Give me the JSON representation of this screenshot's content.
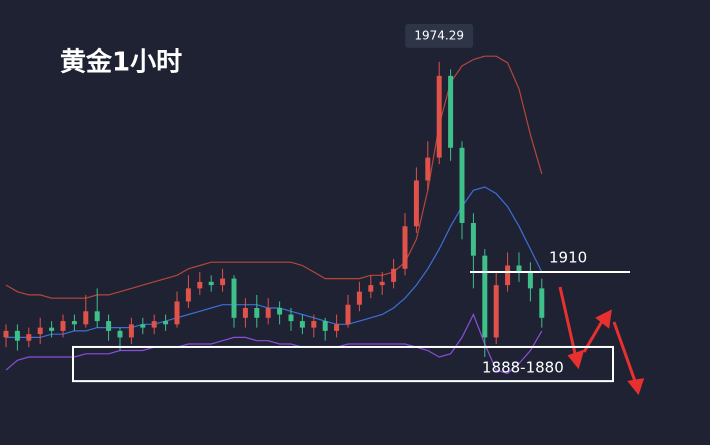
{
  "chart_data": {
    "type": "candlestick",
    "title": "黄金1小时",
    "up_color": "#e0524a",
    "down_color": "#3fbf8a",
    "ylim": [
      1857.1,
      1993.2
    ],
    "open": [
      1890,
      1892,
      1889,
      1891,
      1893,
      1892,
      1895,
      1894,
      1898,
      1895,
      1892,
      1890,
      1894,
      1893,
      1895,
      1894,
      1901,
      1905,
      1907,
      1906,
      1908,
      1896,
      1899,
      1896,
      1899,
      1897,
      1895,
      1893,
      1895,
      1892,
      1894,
      1900,
      1904,
      1906,
      1907,
      1911,
      1924,
      1938,
      1945,
      1970,
      1948,
      1925,
      1915,
      1890,
      1906,
      1912,
      1910,
      1905
    ],
    "high": [
      1894,
      1894,
      1893,
      1896,
      1895,
      1897,
      1897,
      1903,
      1905,
      1897,
      1893,
      1896,
      1896,
      1897,
      1897,
      1904,
      1909,
      1910,
      1909,
      1911,
      1909,
      1902,
      1903,
      1902,
      1901,
      1899,
      1897,
      1897,
      1896,
      1897,
      1903,
      1907,
      1909,
      1910,
      1914,
      1928,
      1942,
      1950,
      1974.29,
      1972,
      1950,
      1928,
      1917,
      1910,
      1916,
      1916,
      1913,
      1908
    ],
    "low": [
      1887,
      1886,
      1887,
      1888,
      1890,
      1890,
      1892,
      1893,
      1893,
      1889,
      1886,
      1888,
      1891,
      1891,
      1892,
      1893,
      1899,
      1903,
      1904,
      1904,
      1893,
      1893,
      1893,
      1894,
      1894,
      1892,
      1891,
      1890,
      1889,
      1890,
      1893,
      1898,
      1902,
      1903,
      1905,
      1909,
      1922,
      1935,
      1943,
      1944,
      1920,
      1905,
      1884,
      1888,
      1904,
      1907,
      1901,
      1893
    ],
    "close": [
      1892,
      1889,
      1891,
      1893,
      1892,
      1895,
      1894,
      1898,
      1895,
      1892,
      1890,
      1894,
      1893,
      1895,
      1894,
      1901,
      1905,
      1907,
      1906,
      1908,
      1896,
      1899,
      1896,
      1899,
      1897,
      1895,
      1893,
      1895,
      1892,
      1894,
      1900,
      1904,
      1906,
      1907,
      1911,
      1924,
      1938,
      1945,
      1970,
      1948,
      1925,
      1915,
      1890,
      1906,
      1912,
      1910,
      1905,
      1896
    ],
    "bands": [
      {
        "color": "#b5473a",
        "values": [
          1906,
          1904,
          1903,
          1903,
          1902,
          1902,
          1902,
          1902,
          1903,
          1903,
          1904,
          1905,
          1906,
          1907,
          1908,
          1909,
          1911,
          1912,
          1913,
          1913,
          1913,
          1913,
          1913,
          1913,
          1913,
          1913,
          1912,
          1910,
          1908,
          1908,
          1908,
          1908,
          1909,
          1909,
          1910,
          1913,
          1920,
          1935,
          1955,
          1968,
          1973,
          1975,
          1976,
          1976,
          1974,
          1966,
          1952,
          1940
        ]
      },
      {
        "color": "#3d6fd6",
        "values": [
          1890,
          1890,
          1890,
          1890,
          1891,
          1891,
          1892,
          1892,
          1893,
          1893,
          1893,
          1893,
          1894,
          1894,
          1895,
          1896,
          1897,
          1898,
          1899,
          1900,
          1900,
          1900,
          1900,
          1899,
          1899,
          1898,
          1897,
          1896,
          1895,
          1894,
          1894,
          1895,
          1896,
          1897,
          1899,
          1902,
          1906,
          1911,
          1917,
          1924,
          1930,
          1935,
          1936,
          1934,
          1930,
          1924,
          1917,
          1910
        ]
      },
      {
        "color": "#8a4fd8",
        "values": [
          1880,
          1883,
          1884,
          1884,
          1884,
          1884,
          1884,
          1885,
          1885,
          1885,
          1886,
          1886,
          1886,
          1887,
          1887,
          1887,
          1888,
          1888,
          1888,
          1889,
          1890,
          1890,
          1889,
          1889,
          1888,
          1888,
          1887,
          1887,
          1887,
          1887,
          1888,
          1888,
          1888,
          1888,
          1888,
          1888,
          1887,
          1886,
          1884,
          1885,
          1890,
          1897,
          1888,
          1880,
          1879,
          1882,
          1886,
          1892
        ]
      }
    ],
    "resistance": 1910,
    "support_zone": {
      "label": "1888-1880",
      "high": 1888,
      "low": 1880
    }
  }
}
